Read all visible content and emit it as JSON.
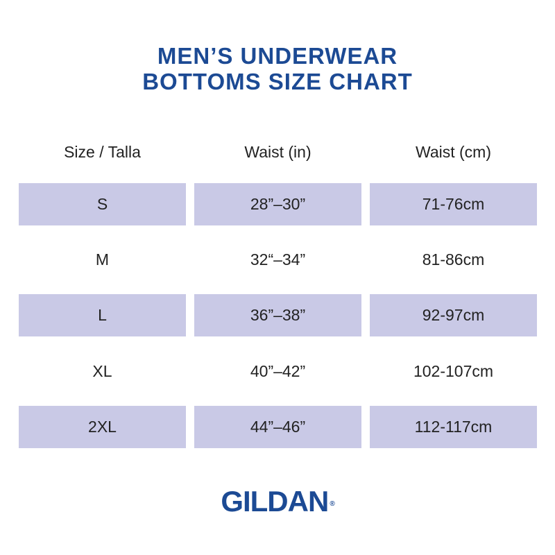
{
  "title": {
    "line1": "MEN’S UNDERWEAR",
    "line2": "BOTTOMS SIZE CHART"
  },
  "table": {
    "headers": [
      "Size / Talla",
      "Waist (in)",
      "Waist (cm)"
    ],
    "rows": [
      [
        "S",
        "28”–30”",
        "71-76cm"
      ],
      [
        "M",
        "32“–34”",
        "81-86cm"
      ],
      [
        "L",
        "36”–38”",
        "92-97cm"
      ],
      [
        "XL",
        "40”–42”",
        "102-107cm"
      ],
      [
        "2XL",
        "44”–46”",
        "112-117cm"
      ]
    ],
    "band_color": "#c9c9e6"
  },
  "brand": {
    "name": "GILDAN",
    "mark": "®",
    "color": "#1c4a94"
  }
}
